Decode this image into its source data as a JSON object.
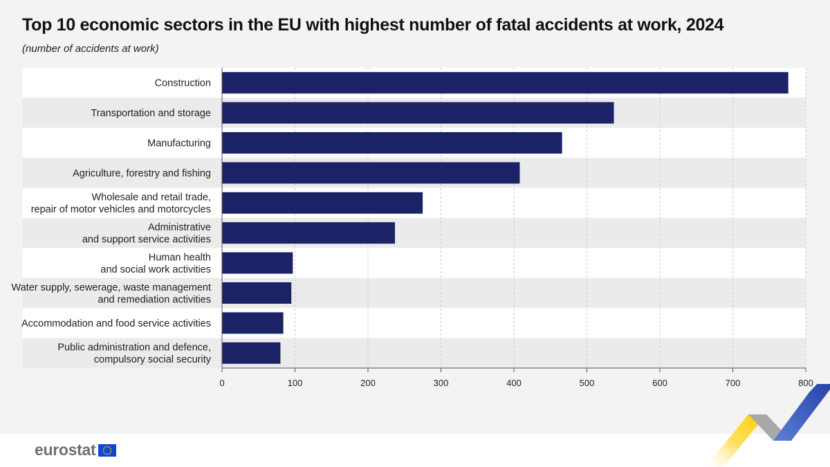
{
  "header": {
    "title": "Top 10 economic sectors in the EU with highest number of fatal accidents at work, 2024",
    "subtitle": "(number of accidents at work)"
  },
  "chart_data": {
    "type": "bar",
    "orientation": "horizontal",
    "title": "Top 10 economic sectors in the EU with highest number of fatal accidents at work, 2024",
    "subtitle": "(number of accidents at work)",
    "xlabel": "",
    "ylabel": "",
    "categories": [
      [
        "Construction"
      ],
      [
        "Transportation and storage"
      ],
      [
        "Manufacturing"
      ],
      [
        "Agriculture, forestry and fishing"
      ],
      [
        "Wholesale and retail trade,",
        "repair of motor vehicles and motorcycles"
      ],
      [
        "Administrative",
        "and support service activities"
      ],
      [
        "Human health",
        "and social work activities"
      ],
      [
        "Water supply, sewerage, waste management",
        "and remediation activities"
      ],
      [
        "Accommodation and food service activities"
      ],
      [
        "Public administration and defence,",
        "compulsory social security"
      ]
    ],
    "values": [
      776,
      537,
      466,
      408,
      275,
      237,
      97,
      95,
      84,
      80
    ],
    "xlim": [
      0,
      800
    ],
    "xticks": [
      0,
      100,
      200,
      300,
      400,
      500,
      600,
      700,
      800
    ],
    "grid": true,
    "legend": "none",
    "colors": {
      "bar": "#1b2366",
      "row_white": "#ffffff",
      "row_grey": "#ebebeb",
      "grid": "#c8c8c8",
      "axis": "#555555"
    }
  },
  "footer": {
    "logo_text": "eurostat",
    "logo_icon": "eu-flag-icon",
    "corner_graphic": "eurostat-arrow-graphic",
    "colors": {
      "logo_text": "#6f6f6f",
      "flag_blue": "#0e47cb",
      "flag_star": "#ffd617",
      "accent_yellow": "#ffcc00",
      "accent_grey": "#a6a6a6",
      "accent_blue": "#2644a7"
    }
  }
}
